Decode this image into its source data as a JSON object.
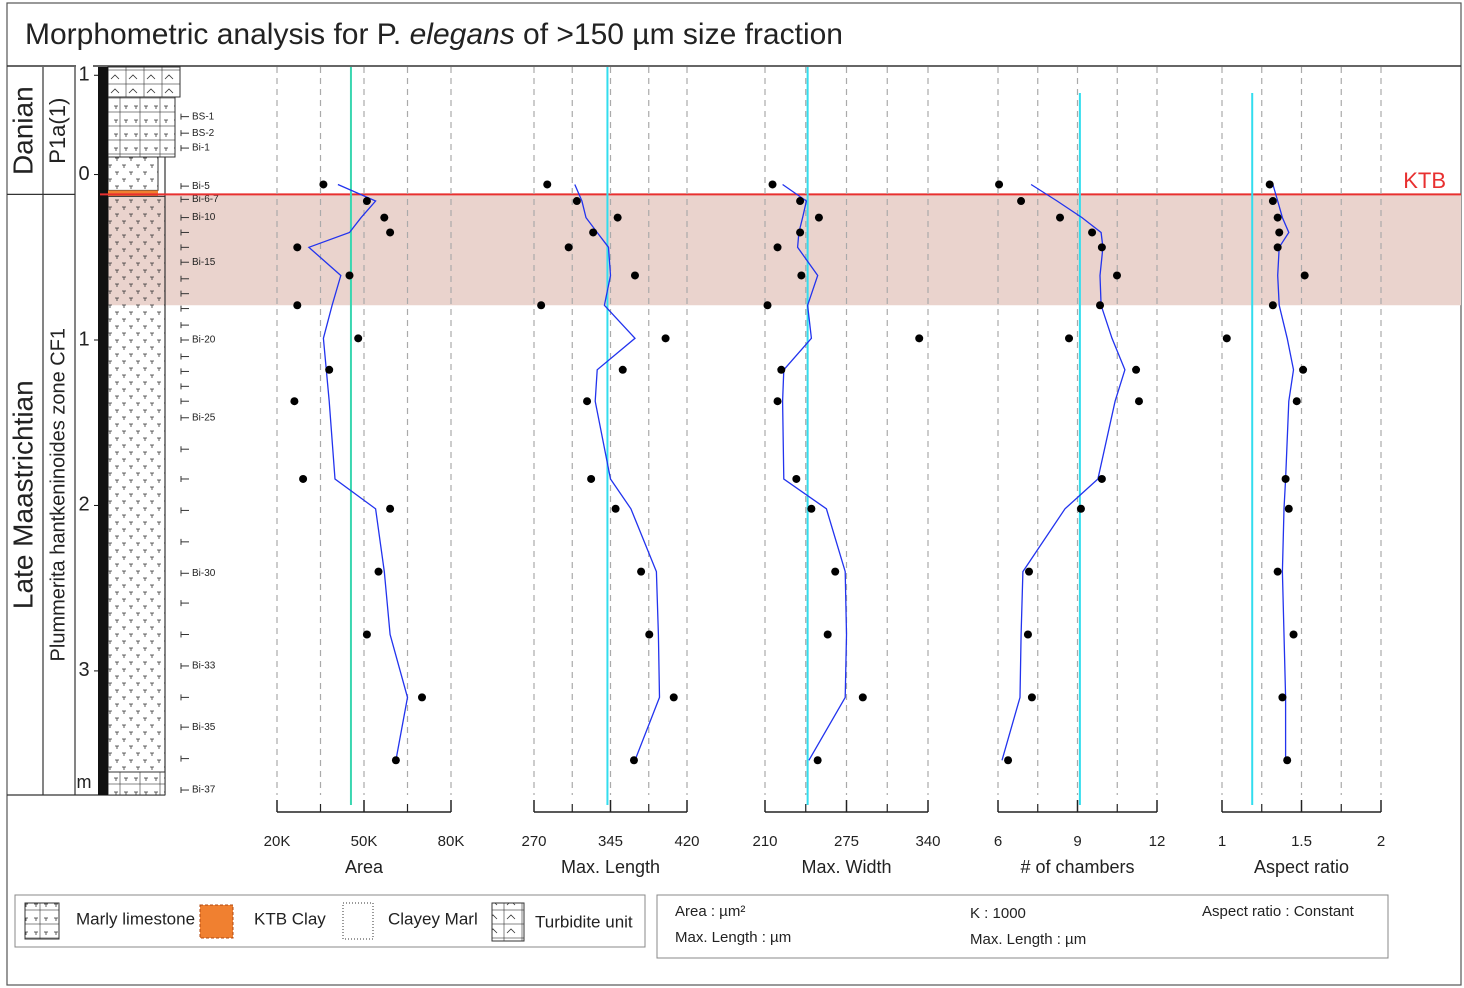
{
  "title_parts": [
    "Morphometric analysis for P. ",
    "elegans",
    " of >150 µm size fraction"
  ],
  "chart_data": {
    "type": "depth-profile",
    "ylim": [
      -0.65,
      3.75
    ],
    "yticks": [
      {
        "value": -0.6,
        "label": "1"
      },
      0,
      1,
      2,
      3
    ],
    "y_unit": "m",
    "stages": [
      "Danian",
      "Late Maastrichtian"
    ],
    "zones": [
      "P1a(1)",
      "Plummerita hantkeninoides zone CF1"
    ],
    "ktb_label": "KTB",
    "ktb_depth": 0.12,
    "band": [
      0.12,
      0.79
    ],
    "samples": [
      {
        "depth": -0.35,
        "label": "BS-1"
      },
      {
        "depth": -0.25,
        "label": "BS-2"
      },
      {
        "depth": -0.16,
        "label": "Bi-1"
      },
      {
        "depth": 0.07,
        "label": "Bi-5"
      },
      {
        "depth": 0.15,
        "label": "Bi-6-7"
      },
      {
        "depth": 0.26,
        "label": "Bi-10"
      },
      {
        "depth": 0.35,
        "label": null
      },
      {
        "depth": 0.44,
        "label": null
      },
      {
        "depth": 0.53,
        "label": "Bi-15"
      },
      {
        "depth": 0.63,
        "label": null
      },
      {
        "depth": 0.72,
        "label": null
      },
      {
        "depth": 0.81,
        "label": null
      },
      {
        "depth": 0.91,
        "label": null
      },
      {
        "depth": 1.0,
        "label": "Bi-20"
      },
      {
        "depth": 1.1,
        "label": null
      },
      {
        "depth": 1.19,
        "label": null
      },
      {
        "depth": 1.28,
        "label": null
      },
      {
        "depth": 1.37,
        "label": null
      },
      {
        "depth": 1.47,
        "label": "Bi-25"
      },
      {
        "depth": 1.66,
        "label": null
      },
      {
        "depth": 1.84,
        "label": null
      },
      {
        "depth": 2.03,
        "label": null
      },
      {
        "depth": 2.22,
        "label": null
      },
      {
        "depth": 2.41,
        "label": "Bi-30"
      },
      {
        "depth": 2.59,
        "label": null
      },
      {
        "depth": 2.78,
        "label": null
      },
      {
        "depth": 2.97,
        "label": "Bi-33"
      },
      {
        "depth": 3.16,
        "label": null
      },
      {
        "depth": 3.34,
        "label": "Bi-35"
      },
      {
        "depth": 3.53,
        "label": null
      },
      {
        "depth": 3.72,
        "label": "Bi-37"
      }
    ],
    "depth": [
      0.06,
      0.16,
      0.26,
      0.35,
      0.44,
      0.61,
      0.79,
      0.99,
      1.18,
      1.37,
      1.84,
      2.02,
      2.4,
      2.78,
      3.16,
      3.54
    ],
    "point_color": "#000000",
    "trend_color": "#2233ee",
    "panels": [
      {
        "xlabel": "Area",
        "xlim": [
          20000,
          80000
        ],
        "xticks": [
          {
            "value": 20000,
            "label": "20K"
          },
          {
            "value": 50000,
            "label": "50K"
          },
          {
            "value": 80000,
            "label": "80K"
          }
        ],
        "xminor": [
          35000,
          65000
        ],
        "reference": 45500,
        "reference_color": "#3ad6b0",
        "points": [
          36000,
          51000,
          57000,
          59000,
          27000,
          45000,
          27000,
          48000,
          38000,
          26000,
          29000,
          59000,
          55000,
          51000,
          70000,
          61000
        ],
        "trend": [
          41000,
          54000,
          49000,
          45000,
          31000,
          42000,
          39000,
          36000,
          37000,
          38000,
          40000,
          54000,
          57000,
          59000,
          65000,
          61000
        ]
      },
      {
        "xlabel": "Max. Length",
        "xlim": [
          270,
          420
        ],
        "xticks": [
          270,
          345,
          420
        ],
        "xminor": [
          307.5,
          382.5
        ],
        "reference": 342,
        "reference_color": "#33ddee",
        "points": [
          283,
          312,
          352,
          328,
          304,
          369,
          277,
          399,
          357,
          322,
          326,
          350,
          375,
          383,
          407,
          368
        ],
        "trend": [
          310,
          317,
          321,
          332,
          343,
          345,
          339,
          369,
          332,
          330,
          345,
          365,
          390,
          392,
          393,
          369
        ]
      },
      {
        "xlabel": "Max. Width",
        "xlim": [
          210,
          340
        ],
        "xticks": [
          210,
          275,
          340
        ],
        "xminor": [
          242.5,
          307.5
        ],
        "reference": 244,
        "reference_color": "#33ddee",
        "points": [
          216,
          238,
          253,
          238,
          220,
          239,
          212,
          333,
          223,
          220,
          235,
          247,
          266,
          260,
          288,
          252
        ],
        "trend": [
          224,
          243,
          240,
          237,
          236,
          252,
          244,
          247,
          225,
          224,
          225,
          259,
          274,
          275,
          274,
          245
        ]
      },
      {
        "xlabel": "# of chambers",
        "xlim": [
          6,
          12
        ],
        "xticks": [
          6,
          9,
          12
        ],
        "xminor": [
          7.5,
          10.5
        ],
        "reference": 9.09,
        "reference_color": "#33ddee",
        "points": [
          6.04,
          6.87,
          8.34,
          9.55,
          9.92,
          10.49,
          9.85,
          8.68,
          11.21,
          11.32,
          9.92,
          9.13,
          7.17,
          7.13,
          7.28,
          6.38
        ],
        "trend": [
          7.25,
          8.23,
          9.17,
          9.89,
          9.96,
          9.85,
          9.89,
          10.3,
          10.79,
          10.42,
          9.77,
          8.53,
          6.94,
          6.87,
          6.83,
          6.15
        ]
      },
      {
        "xlabel": "Aspect ratio",
        "xlim": [
          1,
          2
        ],
        "xticks": [
          1,
          1.5,
          2
        ],
        "xminor": [
          1.25,
          1.75
        ],
        "reference": 1.19,
        "reference_color": "#33ddee",
        "points": [
          1.3,
          1.32,
          1.35,
          1.36,
          1.35,
          1.52,
          1.32,
          1.03,
          1.51,
          1.47,
          1.4,
          1.42,
          1.35,
          1.45,
          1.38,
          1.41
        ],
        "trend": [
          1.32,
          1.35,
          1.38,
          1.42,
          1.36,
          1.35,
          1.36,
          1.41,
          1.45,
          1.42,
          1.4,
          1.39,
          1.38,
          1.39,
          1.4,
          1.4
        ]
      }
    ]
  },
  "legend": [
    "Marly limestone",
    "KTB Clay",
    "Clayey Marl",
    "Turbidite unit"
  ],
  "units": [
    "Area : µm²",
    "Max. Length : µm",
    "K : 1000",
    "Max. Length : µm",
    "Aspect ratio : Constant"
  ]
}
